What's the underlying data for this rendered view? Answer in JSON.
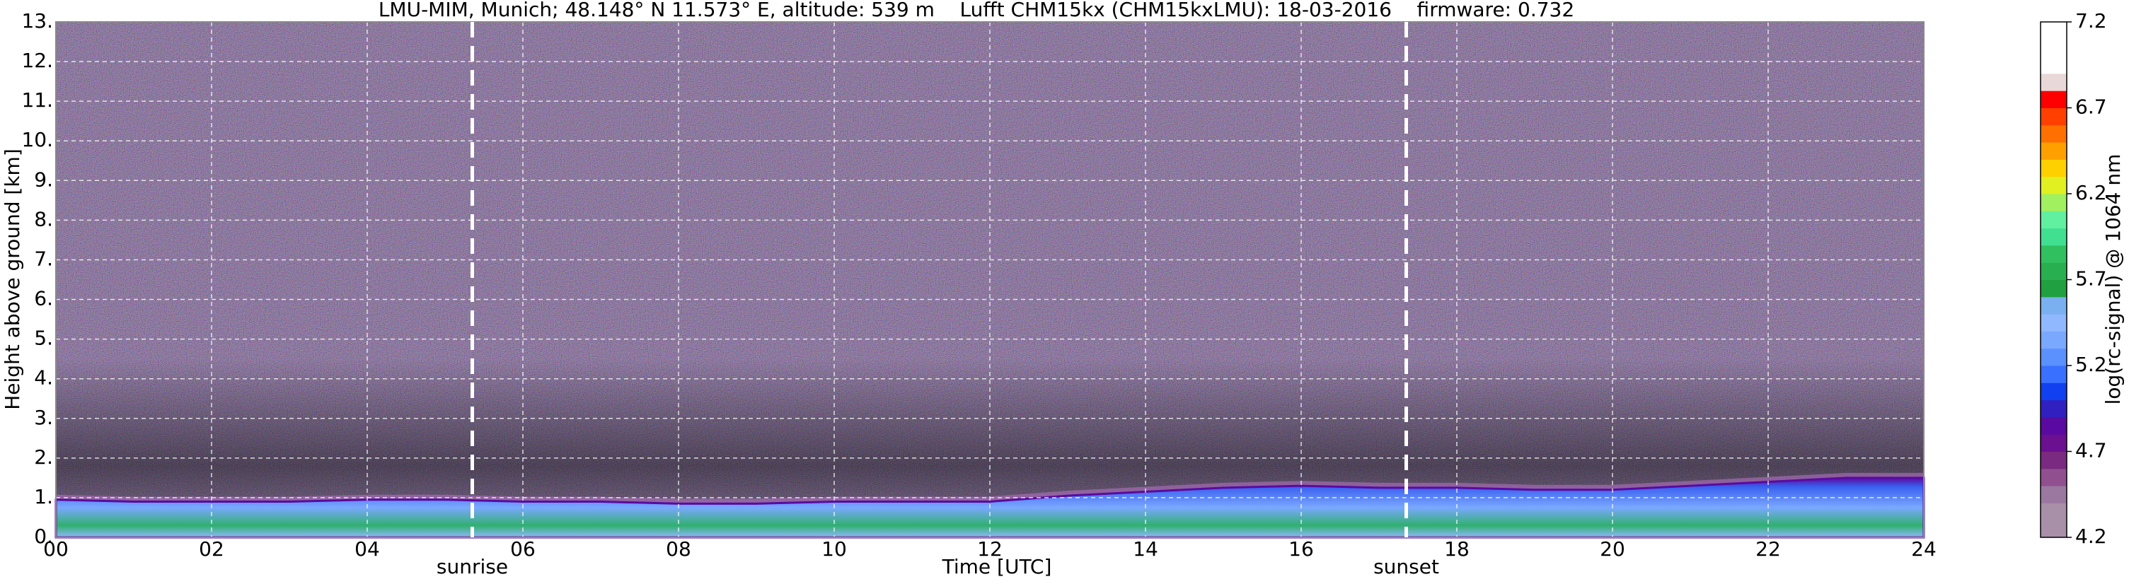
{
  "chart_data": {
    "type": "area",
    "title": "LMU-MIM, Munich; 48.148° N 11.573° E, altitude: 539 m    Lufft CHM15kx (CHM15kxLMU): 18-03-2016    firmware: 0.732",
    "x_label": "Time [UTC]",
    "y_label": "Height above ground [km]",
    "x": [
      0,
      1,
      2,
      3,
      4,
      5,
      6,
      7,
      8,
      9,
      10,
      11,
      12,
      13,
      14,
      15,
      16,
      17,
      18,
      19,
      20,
      21,
      22,
      23,
      24
    ],
    "values": [
      0.95,
      0.9,
      0.9,
      0.9,
      0.95,
      0.95,
      0.9,
      0.9,
      0.85,
      0.85,
      0.9,
      0.9,
      0.9,
      1.05,
      1.15,
      1.25,
      1.3,
      1.25,
      1.25,
      1.2,
      1.2,
      1.3,
      1.4,
      1.5,
      1.5
    ],
    "color": "#6f8ff0",
    "background_color": "#55406a",
    "xlim": [
      0,
      24
    ],
    "xticks": [
      {
        "value": 0,
        "label": "00"
      },
      {
        "value": 2,
        "label": "02"
      },
      {
        "value": 4,
        "label": "04"
      },
      {
        "value": 6,
        "label": "06"
      },
      {
        "value": 8,
        "label": "08"
      },
      10,
      12,
      14,
      16,
      18,
      20,
      22,
      24
    ],
    "ylim": [
      0,
      13
    ],
    "yticks": [
      {
        "value": 0,
        "label": "0."
      },
      {
        "value": 1,
        "label": "1."
      },
      {
        "value": 2,
        "label": "2."
      },
      {
        "value": 3,
        "label": "3."
      },
      {
        "value": 4,
        "label": "4."
      },
      {
        "value": 5,
        "label": "5."
      },
      {
        "value": 6,
        "label": "6."
      },
      {
        "value": 7,
        "label": "7."
      },
      {
        "value": 8,
        "label": "8."
      },
      {
        "value": 9,
        "label": "9."
      },
      {
        "value": 10,
        "label": "10."
      },
      {
        "value": 11,
        "label": "11."
      },
      {
        "value": 12,
        "label": "12."
      },
      {
        "value": 13,
        "label": "13."
      }
    ],
    "grid": true,
    "annotations": [
      {
        "x": 5.35,
        "label": "sunrise"
      },
      {
        "x": 17.35,
        "label": "sunset"
      }
    ],
    "colorbar": {
      "label": "log(rc-signal) @ 1064 nm",
      "lim": [
        4.2,
        7.2
      ],
      "ticks": [
        4.2,
        4.7,
        5.2,
        5.7,
        6.2,
        6.7,
        7.2
      ],
      "colors": [
        "#a890a8",
        "#a890a8",
        "#9a78a0",
        "#905090",
        "#7a2a80",
        "#6a1090",
        "#5a0aa0",
        "#3020c0",
        "#1040f0",
        "#3a70ff",
        "#5a90ff",
        "#7aa8ff",
        "#90b8ff",
        "#7ab0f0",
        "#20a040",
        "#28b050",
        "#30c060",
        "#40e090",
        "#60f0a0",
        "#a0f060",
        "#e0f020",
        "#ffd000",
        "#ffa000",
        "#ff7000",
        "#ff4000",
        "#ff0000",
        "#e8d8d8",
        "#ffffff",
        "#ffffff",
        "#ffffff"
      ]
    }
  }
}
